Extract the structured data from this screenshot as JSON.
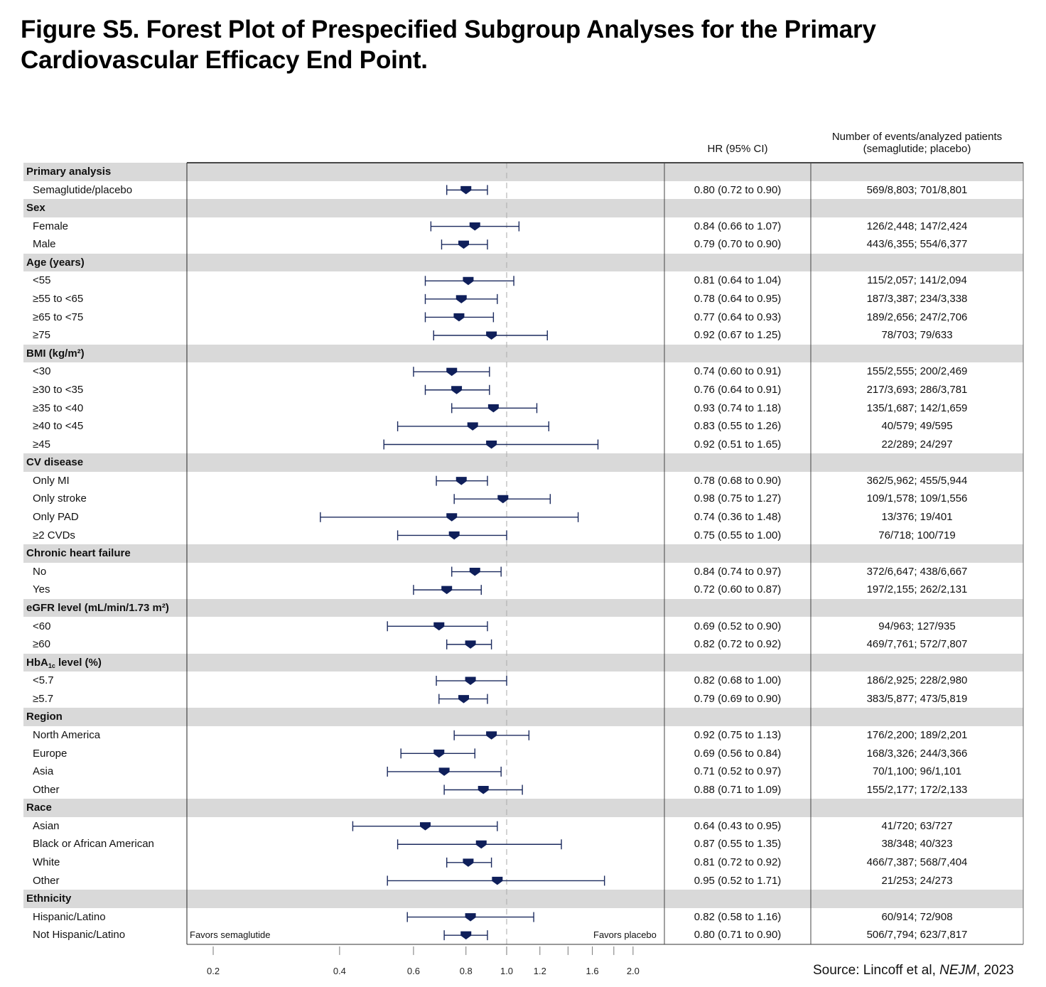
{
  "title": "Figure S5. Forest Plot of Prespecified Subgroup Analyses for the Primary Cardiovascular Efficacy End Point.",
  "columns": {
    "hr_header": "HR (95% CI)",
    "events_header_line1": "Number of events/analyzed patients",
    "events_header_line2": "(semaglutide; placebo)"
  },
  "favors_left": "Favors semaglutide",
  "favors_right": "Favors placebo",
  "source": {
    "prefix": "Source: Lincoff et al, ",
    "journal": "NEJM",
    "suffix": ", 2023"
  },
  "colors": {
    "marker": "#0f1f5a",
    "ci_line": "#1b2a5e",
    "header_band": "#d9d9d9",
    "ref_line": "#aaaaaa"
  },
  "chart_data": {
    "type": "forest",
    "title": "Figure S5. Forest Plot of Prespecified Subgroup Analyses for the Primary Cardiovascular Efficacy End Point.",
    "xlabel": "",
    "x_scale": "log",
    "xlim": [
      0.2,
      2.1
    ],
    "reference_line": 1.0,
    "ticks": [
      0.2,
      0.4,
      0.6,
      0.8,
      1.0,
      1.2,
      1.4,
      1.6,
      1.8,
      2.0
    ],
    "tick_labels": [
      {
        "value": 0.2,
        "label": "0.2"
      },
      {
        "value": 0.4,
        "label": "0.4"
      },
      {
        "value": 0.6,
        "label": "0.6"
      },
      {
        "value": 0.8,
        "label": "0.8"
      },
      {
        "value": 1.0,
        "label": "1.0"
      },
      {
        "value": 1.2,
        "label": "1.2"
      },
      {
        "value": 1.6,
        "label": "1.6"
      },
      {
        "value": 2.0,
        "label": "2.0"
      }
    ],
    "rows": [
      {
        "kind": "header",
        "label": "Primary analysis"
      },
      {
        "kind": "item",
        "label": "Semaglutide/placebo",
        "hr": 0.8,
        "lo": 0.72,
        "hi": 0.9,
        "hr_text": "0.80 (0.72 to 0.90)",
        "events": "569/8,803; 701/8,801"
      },
      {
        "kind": "header",
        "label": "Sex"
      },
      {
        "kind": "item",
        "label": "Female",
        "hr": 0.84,
        "lo": 0.66,
        "hi": 1.07,
        "hr_text": "0.84 (0.66 to 1.07)",
        "events": "126/2,448; 147/2,424"
      },
      {
        "kind": "item",
        "label": "Male",
        "hr": 0.79,
        "lo": 0.7,
        "hi": 0.9,
        "hr_text": "0.79 (0.70 to 0.90)",
        "events": "443/6,355; 554/6,377"
      },
      {
        "kind": "header",
        "label": "Age (years)"
      },
      {
        "kind": "item",
        "label": "<55",
        "hr": 0.81,
        "lo": 0.64,
        "hi": 1.04,
        "hr_text": "0.81 (0.64 to 1.04)",
        "events": "115/2,057; 141/2,094"
      },
      {
        "kind": "item",
        "label": "≥55 to <65",
        "hr": 0.78,
        "lo": 0.64,
        "hi": 0.95,
        "hr_text": "0.78 (0.64 to 0.95)",
        "events": "187/3,387; 234/3,338"
      },
      {
        "kind": "item",
        "label": "≥65 to <75",
        "hr": 0.77,
        "lo": 0.64,
        "hi": 0.93,
        "hr_text": "0.77 (0.64 to 0.93)",
        "events": "189/2,656; 247/2,706"
      },
      {
        "kind": "item",
        "label": "≥75",
        "hr": 0.92,
        "lo": 0.67,
        "hi": 1.25,
        "hr_text": "0.92 (0.67 to 1.25)",
        "events": "78/703; 79/633"
      },
      {
        "kind": "header",
        "label": "BMI (kg/m²)"
      },
      {
        "kind": "item",
        "label": "<30",
        "hr": 0.74,
        "lo": 0.6,
        "hi": 0.91,
        "hr_text": "0.74 (0.60 to 0.91)",
        "events": "155/2,555; 200/2,469"
      },
      {
        "kind": "item",
        "label": "≥30 to <35",
        "hr": 0.76,
        "lo": 0.64,
        "hi": 0.91,
        "hr_text": "0.76 (0.64 to 0.91)",
        "events": "217/3,693; 286/3,781"
      },
      {
        "kind": "item",
        "label": "≥35 to <40",
        "hr": 0.93,
        "lo": 0.74,
        "hi": 1.18,
        "hr_text": "0.93 (0.74 to 1.18)",
        "events": "135/1,687; 142/1,659"
      },
      {
        "kind": "item",
        "label": "≥40 to <45",
        "hr": 0.83,
        "lo": 0.55,
        "hi": 1.26,
        "hr_text": "0.83 (0.55 to 1.26)",
        "events": "40/579; 49/595"
      },
      {
        "kind": "item",
        "label": "≥45",
        "hr": 0.92,
        "lo": 0.51,
        "hi": 1.65,
        "hr_text": "0.92 (0.51 to 1.65)",
        "events": "22/289; 24/297"
      },
      {
        "kind": "header",
        "label": "CV disease"
      },
      {
        "kind": "item",
        "label": "Only MI",
        "hr": 0.78,
        "lo": 0.68,
        "hi": 0.9,
        "hr_text": "0.78 (0.68 to 0.90)",
        "events": "362/5,962; 455/5,944"
      },
      {
        "kind": "item",
        "label": "Only stroke",
        "hr": 0.98,
        "lo": 0.75,
        "hi": 1.27,
        "hr_text": "0.98 (0.75 to 1.27)",
        "events": "109/1,578; 109/1,556"
      },
      {
        "kind": "item",
        "label": "Only PAD",
        "hr": 0.74,
        "lo": 0.36,
        "hi": 1.48,
        "hr_text": "0.74 (0.36 to 1.48)",
        "events": "13/376; 19/401"
      },
      {
        "kind": "item",
        "label": "≥2 CVDs",
        "hr": 0.75,
        "lo": 0.55,
        "hi": 1.0,
        "hr_text": "0.75 (0.55 to 1.00)",
        "events": "76/718; 100/719"
      },
      {
        "kind": "header",
        "label": "Chronic heart failure"
      },
      {
        "kind": "item",
        "label": "No",
        "hr": 0.84,
        "lo": 0.74,
        "hi": 0.97,
        "hr_text": "0.84 (0.74 to 0.97)",
        "events": "372/6,647; 438/6,667"
      },
      {
        "kind": "item",
        "label": "Yes",
        "hr": 0.72,
        "lo": 0.6,
        "hi": 0.87,
        "hr_text": "0.72 (0.60 to 0.87)",
        "events": "197/2,155; 262/2,131"
      },
      {
        "kind": "header",
        "label": "eGFR level (mL/min/1.73 m²)"
      },
      {
        "kind": "item",
        "label": "<60",
        "hr": 0.69,
        "lo": 0.52,
        "hi": 0.9,
        "hr_text": "0.69 (0.52 to 0.90)",
        "events": "94/963; 127/935"
      },
      {
        "kind": "item",
        "label": "≥60",
        "hr": 0.82,
        "lo": 0.72,
        "hi": 0.92,
        "hr_text": "0.82 (0.72 to 0.92)",
        "events": "469/7,761; 572/7,807"
      },
      {
        "kind": "header",
        "label": "HbA1c level (%)"
      },
      {
        "kind": "item",
        "label": "<5.7",
        "hr": 0.82,
        "lo": 0.68,
        "hi": 1.0,
        "hr_text": "0.82 (0.68 to 1.00)",
        "events": "186/2,925; 228/2,980"
      },
      {
        "kind": "item",
        "label": "≥5.7",
        "hr": 0.79,
        "lo": 0.69,
        "hi": 0.9,
        "hr_text": "0.79 (0.69 to 0.90)",
        "events": "383/5,877; 473/5,819"
      },
      {
        "kind": "header",
        "label": "Region"
      },
      {
        "kind": "item",
        "label": "North America",
        "hr": 0.92,
        "lo": 0.75,
        "hi": 1.13,
        "hr_text": "0.92 (0.75 to 1.13)",
        "events": "176/2,200; 189/2,201"
      },
      {
        "kind": "item",
        "label": "Europe",
        "hr": 0.69,
        "lo": 0.56,
        "hi": 0.84,
        "hr_text": "0.69 (0.56 to 0.84)",
        "events": "168/3,326; 244/3,366"
      },
      {
        "kind": "item",
        "label": "Asia",
        "hr": 0.71,
        "lo": 0.52,
        "hi": 0.97,
        "hr_text": "0.71 (0.52 to 0.97)",
        "events": "70/1,100; 96/1,101"
      },
      {
        "kind": "item",
        "label": "Other",
        "hr": 0.88,
        "lo": 0.71,
        "hi": 1.09,
        "hr_text": "0.88 (0.71 to 1.09)",
        "events": "155/2,177; 172/2,133"
      },
      {
        "kind": "header",
        "label": "Race"
      },
      {
        "kind": "item",
        "label": "Asian",
        "hr": 0.64,
        "lo": 0.43,
        "hi": 0.95,
        "hr_text": "0.64 (0.43 to 0.95)",
        "events": "41/720; 63/727"
      },
      {
        "kind": "item",
        "label": "Black or African American",
        "hr": 0.87,
        "lo": 0.55,
        "hi": 1.35,
        "hr_text": "0.87 (0.55 to 1.35)",
        "events": "38/348; 40/323"
      },
      {
        "kind": "item",
        "label": "White",
        "hr": 0.81,
        "lo": 0.72,
        "hi": 0.92,
        "hr_text": "0.81 (0.72 to 0.92)",
        "events": "466/7,387; 568/7,404"
      },
      {
        "kind": "item",
        "label": "Other",
        "hr": 0.95,
        "lo": 0.52,
        "hi": 1.71,
        "hr_text": "0.95 (0.52 to 1.71)",
        "events": "21/253; 24/273"
      },
      {
        "kind": "header",
        "label": "Ethnicity"
      },
      {
        "kind": "item",
        "label": "Hispanic/Latino",
        "hr": 0.82,
        "lo": 0.58,
        "hi": 1.16,
        "hr_text": "0.82 (0.58 to 1.16)",
        "events": "60/914; 72/908"
      },
      {
        "kind": "item",
        "label": "Not Hispanic/Latino",
        "hr": 0.8,
        "lo": 0.71,
        "hi": 0.9,
        "hr_text": "0.80 (0.71 to 0.90)",
        "events": "506/7,794; 623/7,817"
      }
    ]
  }
}
